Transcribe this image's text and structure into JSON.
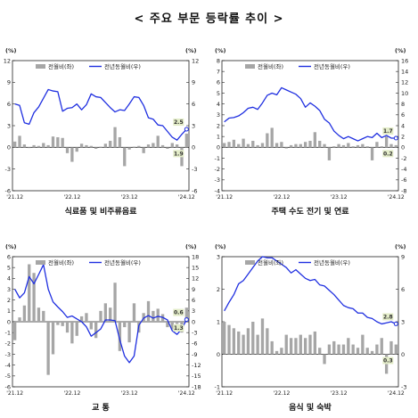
{
  "page": {
    "title": "< 주요 부문 등락률 추이 >"
  },
  "colors": {
    "bar": "#a6a6a6",
    "line": "#1f2fe0",
    "label_bg": "#e3ecc8",
    "axis": "#222222"
  },
  "chart_data": [
    {
      "type": "bar+line",
      "title": "식료품 및 비주류음료",
      "legend": [
        "전월비(좌)",
        "전년동월비(우)"
      ],
      "y_left": {
        "unit": "(%)",
        "min": -6,
        "max": 12,
        "ticks": [
          -6,
          -3,
          0,
          3,
          6,
          9,
          12
        ]
      },
      "y_right": {
        "unit": "(%)",
        "min": -6,
        "max": 12,
        "ticks": [
          -6,
          -3,
          0,
          3,
          6,
          9,
          12
        ]
      },
      "x_labels": [
        "'21.12",
        "'22.12",
        "'23.12",
        "'24.12"
      ],
      "n_months": 37,
      "series": [
        {
          "name": "전월비(좌)",
          "type": "bar",
          "values": [
            0.8,
            1.6,
            0.4,
            -0.1,
            0.3,
            0.2,
            0.6,
            0.3,
            1.5,
            1.4,
            1.3,
            -0.8,
            -2.0,
            -0.6,
            0.5,
            0.3,
            0.2,
            -0.2,
            0.1,
            0.5,
            0.9,
            2.8,
            1.4,
            -2.6,
            -0.3,
            0.1,
            0.2,
            -0.8,
            0.4,
            0.6,
            1.6,
            0.3,
            -0.2,
            0.6,
            0.4,
            -2.6,
            1.9
          ]
        },
        {
          "name": "전년동월비(우)",
          "type": "line",
          "values": [
            6.0,
            5.8,
            3.4,
            3.2,
            4.8,
            5.6,
            6.8,
            8.0,
            7.8,
            7.7,
            5.0,
            5.4,
            5.5,
            6.0,
            5.2,
            5.9,
            7.4,
            7.0,
            6.9,
            6.2,
            5.5,
            4.9,
            5.2,
            5.1,
            6.0,
            7.0,
            6.9,
            5.8,
            4.1,
            3.9,
            3.1,
            3.0,
            2.2,
            1.4,
            1.0,
            1.8,
            2.5
          ]
        }
      ],
      "end_labels": {
        "bar": "1.9",
        "line": "2.5"
      }
    },
    {
      "type": "bar+line",
      "title": "주택 수도 전기 및 연료",
      "legend": [
        "전월비(좌)",
        "전년동월비(우)"
      ],
      "y_left": {
        "unit": "(%)",
        "min": -4,
        "max": 8,
        "ticks": [
          -4,
          -3,
          -2,
          -1,
          0,
          1,
          2,
          3,
          4,
          5,
          6,
          7,
          8
        ]
      },
      "y_right": {
        "unit": "(%)",
        "min": -8,
        "max": 16,
        "ticks": [
          -8,
          -6,
          -4,
          -2,
          0,
          2,
          4,
          6,
          8,
          10,
          12,
          14,
          16
        ]
      },
      "x_labels": [
        "'21.12",
        "'22.12",
        "'23.12",
        "'24.12"
      ],
      "n_months": 37,
      "series": [
        {
          "name": "전월비(좌)",
          "type": "bar",
          "values": [
            0.4,
            0.5,
            0.7,
            0.3,
            0.8,
            0.3,
            0.6,
            0.2,
            0.4,
            1.3,
            1.8,
            0.4,
            0.5,
            -0.1,
            0.2,
            0.3,
            0.3,
            0.5,
            0.6,
            1.4,
            0.6,
            0.3,
            -1.2,
            0.1,
            0.3,
            0.2,
            0.4,
            0.1,
            0.2,
            0.3,
            0.1,
            -1.2,
            0.5,
            0.1,
            1.0,
            0.3,
            0.2
          ]
        },
        {
          "name": "전년동월비(우)",
          "type": "line",
          "values": [
            4.7,
            5.4,
            5.5,
            5.8,
            6.4,
            7.2,
            7.4,
            7.0,
            8.2,
            9.6,
            10.0,
            9.7,
            11.0,
            10.6,
            10.2,
            9.8,
            9.0,
            7.4,
            8.2,
            7.6,
            6.8,
            5.2,
            4.5,
            3.0,
            2.2,
            1.6,
            2.0,
            1.6,
            1.2,
            1.6,
            2.0,
            1.8,
            2.6,
            1.8,
            2.2,
            1.7,
            1.7
          ]
        }
      ],
      "end_labels": {
        "bar": "0.2",
        "line": "1.7"
      }
    },
    {
      "type": "bar+line",
      "title": "교 통",
      "legend": [
        "전월비(좌)",
        "전년동월비(우)"
      ],
      "y_left": {
        "unit": "(%)",
        "min": -6,
        "max": 6,
        "ticks": [
          -6,
          -5,
          -4,
          -3,
          -2,
          -1,
          0,
          1,
          2,
          3,
          4,
          5,
          6
        ]
      },
      "y_right": {
        "unit": "(%)",
        "min": -18,
        "max": 18,
        "ticks": [
          -18,
          -15,
          -12,
          -9,
          -6,
          -3,
          0,
          3,
          6,
          9,
          12,
          15,
          18
        ]
      },
      "x_labels": [
        "'21.12",
        "'22.12",
        "'23.12",
        "'24.12"
      ],
      "n_months": 37,
      "series": [
        {
          "name": "전월비(좌)",
          "type": "bar",
          "values": [
            -1.7,
            0.4,
            1.5,
            5.3,
            4.5,
            1.3,
            1.0,
            -4.9,
            -3.0,
            -0.3,
            -0.4,
            -1.0,
            -2.0,
            -1.3,
            0.5,
            0.8,
            -0.7,
            -1.5,
            1.0,
            1.7,
            1.3,
            3.6,
            -2.7,
            -0.5,
            -1.9,
            1.7,
            -1.0,
            0.8,
            1.9,
            1.0,
            1.2,
            0.7,
            -0.5,
            -0.7,
            -0.2,
            -1.0,
            1.3
          ]
        },
        {
          "name": "전년동월비(우)",
          "type": "line",
          "values": [
            9.0,
            6.6,
            8.0,
            12.5,
            10.5,
            13.1,
            15.8,
            9.0,
            5.5,
            4.1,
            2.8,
            1.2,
            1.6,
            0.8,
            0.0,
            -1.4,
            -4.0,
            -3.0,
            -2.0,
            0.5,
            0.5,
            0.3,
            -5.0,
            -9.5,
            -11.3,
            -9.5,
            -1.0,
            1.0,
            1.7,
            1.0,
            1.5,
            1.2,
            0.5,
            -2.5,
            -3.5,
            -2.0,
            0.6
          ]
        }
      ],
      "end_labels": {
        "bar": "1.3",
        "line": "0.6"
      }
    },
    {
      "type": "bar+line",
      "title": "음식 및 숙박",
      "legend": [
        "전월비(좌)",
        "전년동월비(우)"
      ],
      "y_left": {
        "unit": "(%)",
        "min": -1,
        "max": 3,
        "ticks": [
          -1,
          0,
          1,
          2,
          3
        ]
      },
      "y_right": {
        "unit": "(%)",
        "min": -3,
        "max": 9,
        "ticks": [
          -3,
          0,
          3,
          6,
          9
        ]
      },
      "x_labels": [
        "'21.12",
        "'22.12",
        "'23.12",
        "'24.12"
      ],
      "n_months": 37,
      "series": [
        {
          "name": "전월비(좌)",
          "type": "bar",
          "values": [
            1.0,
            0.9,
            0.8,
            0.7,
            0.6,
            0.8,
            1.0,
            0.6,
            1.1,
            0.8,
            0.4,
            0.1,
            0.2,
            0.6,
            0.5,
            0.5,
            0.6,
            0.5,
            0.6,
            0.7,
            0.2,
            -0.3,
            0.3,
            0.4,
            0.3,
            0.3,
            0.5,
            0.3,
            0.2,
            0.6,
            0.2,
            0.1,
            0.3,
            0.5,
            -0.6,
            0.4,
            0.3
          ]
        },
        {
          "name": "전년동월비(우)",
          "type": "line",
          "values": [
            4.0,
            4.8,
            5.5,
            6.5,
            6.8,
            7.4,
            8.0,
            8.6,
            9.0,
            8.9,
            8.9,
            8.6,
            8.3,
            8.0,
            7.5,
            7.8,
            7.4,
            7.0,
            6.8,
            6.9,
            6.4,
            6.3,
            5.9,
            5.5,
            5.0,
            4.5,
            4.3,
            4.2,
            3.8,
            3.8,
            3.4,
            3.3,
            3.0,
            2.8,
            2.9,
            3.0,
            2.8
          ]
        }
      ],
      "end_labels": {
        "bar": "0.3",
        "line": "2.8"
      }
    }
  ]
}
